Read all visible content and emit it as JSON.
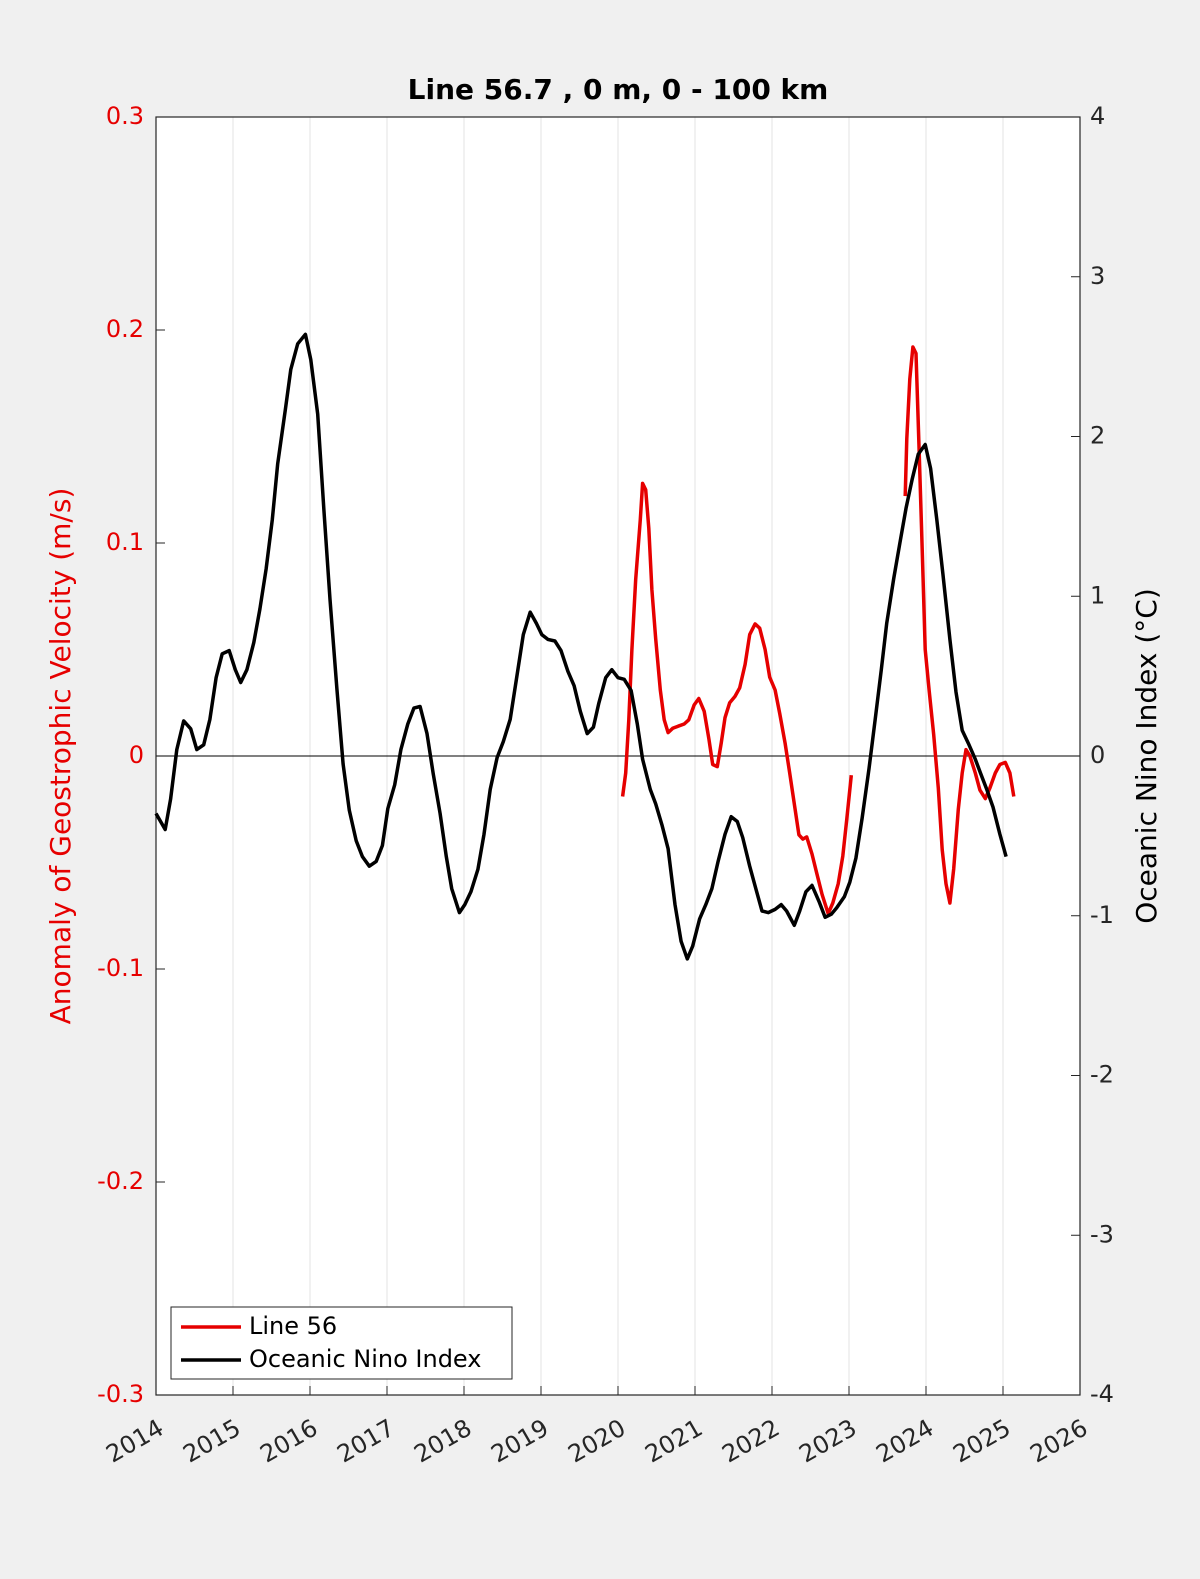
{
  "chart_data": {
    "type": "line",
    "title": "Line 56.7 , 0 m, 0 - 100 km",
    "ylabel": "Anomaly of Geostrophic Velocity (m/s)",
    "y2label": "Oceanic Nino Index (°C)",
    "ylabel_color": "#e60000",
    "xlim": [
      2014,
      2026
    ],
    "xticks": [
      2014,
      2015,
      2016,
      2017,
      2018,
      2019,
      2020,
      2021,
      2022,
      2023,
      2024,
      2025,
      2026
    ],
    "ylim": [
      -0.3,
      0.3
    ],
    "yticks": [
      -0.3,
      -0.2,
      -0.1,
      0,
      0.1,
      0.2,
      0.3
    ],
    "y2lim": [
      -4,
      4
    ],
    "y2ticks": [
      -4,
      -3,
      -2,
      -1,
      0,
      1,
      2,
      3,
      4
    ],
    "grid": "x",
    "hline": 0,
    "legend": "lower left",
    "series": [
      {
        "name": "Line 56",
        "color": "#e60000",
        "axis": "y",
        "x": [
          2020.06,
          2020.1,
          2020.14,
          2020.18,
          2020.23,
          2020.29,
          2020.32,
          2020.36,
          2020.4,
          2020.44,
          2020.49,
          2020.55,
          2020.6,
          2020.65,
          2020.71,
          2020.78,
          2020.86,
          2020.92,
          2020.99,
          2021.05,
          2021.12,
          2021.18,
          2021.23,
          2021.29,
          2021.34,
          2021.39,
          2021.45,
          2021.52,
          2021.58,
          2021.65,
          2021.71,
          2021.78,
          2021.84,
          2021.91,
          2021.97,
          2022.04,
          2022.1,
          2022.17,
          2022.23,
          2022.3,
          2022.35,
          2022.4,
          2022.45,
          2022.52,
          2022.58,
          2022.65,
          2022.73,
          2022.79,
          2022.86,
          2022.92,
          2022.97,
          2023.03,
          null,
          2023.73,
          2023.75,
          2023.79,
          2023.83,
          2023.87,
          2023.91,
          2023.95,
          2023.99,
          2024.04,
          2024.1,
          2024.16,
          2024.21,
          2024.26,
          2024.31,
          2024.36,
          2024.42,
          2024.47,
          2024.52,
          2024.57,
          2024.64,
          2024.7,
          2024.77,
          2024.83,
          2024.9,
          2024.96,
          2025.03,
          2025.09,
          2025.14
        ],
        "values": [
          -0.019,
          -0.008,
          0.017,
          0.05,
          0.083,
          0.111,
          0.128,
          0.125,
          0.107,
          0.078,
          0.055,
          0.031,
          0.017,
          0.011,
          0.013,
          0.014,
          0.015,
          0.017,
          0.024,
          0.027,
          0.021,
          0.008,
          -0.004,
          -0.005,
          0.006,
          0.018,
          0.025,
          0.028,
          0.032,
          0.043,
          0.057,
          0.062,
          0.06,
          0.05,
          0.037,
          0.031,
          0.02,
          0.006,
          -0.008,
          -0.025,
          -0.037,
          -0.039,
          -0.038,
          -0.046,
          -0.055,
          -0.065,
          -0.074,
          -0.069,
          -0.06,
          -0.047,
          -0.03,
          -0.009,
          null,
          0.122,
          0.149,
          0.177,
          0.192,
          0.189,
          0.144,
          0.097,
          0.05,
          0.031,
          0.01,
          -0.015,
          -0.044,
          -0.06,
          -0.069,
          -0.053,
          -0.025,
          -0.008,
          0.003,
          0,
          -0.008,
          -0.016,
          -0.02,
          -0.015,
          -0.008,
          -0.004,
          -0.003,
          -0.008,
          -0.019
        ]
      },
      {
        "name": "Oceanic Nino Index",
        "color": "#000000",
        "axis": "y2",
        "x": [
          2014.0,
          2014.12,
          2014.19,
          2014.27,
          2014.36,
          2014.45,
          2014.53,
          2014.62,
          2014.7,
          2014.78,
          2014.86,
          2014.95,
          2015.03,
          2015.1,
          2015.18,
          2015.27,
          2015.35,
          2015.43,
          2015.51,
          2015.58,
          2015.68,
          2015.75,
          2015.84,
          2015.94,
          2016.01,
          2016.1,
          2016.18,
          2016.26,
          2016.35,
          2016.43,
          2016.51,
          2016.6,
          2016.68,
          2016.77,
          2016.86,
          2016.94,
          2017.01,
          2017.1,
          2017.18,
          2017.27,
          2017.35,
          2017.43,
          2017.52,
          2017.6,
          2017.69,
          2017.77,
          2017.84,
          2017.94,
          2018.01,
          2018.09,
          2018.18,
          2018.26,
          2018.34,
          2018.43,
          2018.51,
          2018.6,
          2018.68,
          2018.77,
          2018.86,
          2018.94,
          2019.01,
          2019.09,
          2019.18,
          2019.26,
          2019.35,
          2019.43,
          2019.51,
          2019.6,
          2019.68,
          2019.75,
          2019.84,
          2019.92,
          2020.0,
          2020.08,
          2020.17,
          2020.25,
          2020.32,
          2020.42,
          2020.49,
          2020.57,
          2020.65,
          2020.74,
          2020.82,
          2020.9,
          2020.97,
          2021.06,
          2021.14,
          2021.22,
          2021.3,
          2021.39,
          2021.47,
          2021.55,
          2021.62,
          2021.71,
          2021.79,
          2021.87,
          2021.95,
          2022.04,
          2022.12,
          2022.19,
          2022.29,
          2022.36,
          2022.44,
          2022.52,
          2022.61,
          2022.69,
          2022.77,
          2022.84,
          2022.94,
          2023.01,
          2023.09,
          2023.17,
          2023.26,
          2023.34,
          2023.42,
          2023.49,
          2023.58,
          2023.66,
          2023.74,
          2023.82,
          2023.9,
          2023.99,
          2024.06,
          2024.14,
          2024.22,
          2024.31,
          2024.39,
          2024.47,
          2024.55,
          2024.64,
          2024.71,
          2024.79,
          2024.87,
          2024.96,
          2025.04
        ],
        "values": [
          -0.36,
          -0.46,
          -0.27,
          0.04,
          0.22,
          0.17,
          0.04,
          0.07,
          0.23,
          0.49,
          0.64,
          0.66,
          0.54,
          0.46,
          0.54,
          0.71,
          0.92,
          1.17,
          1.48,
          1.83,
          2.17,
          2.42,
          2.58,
          2.64,
          2.48,
          2.14,
          1.54,
          0.98,
          0.42,
          -0.05,
          -0.34,
          -0.53,
          -0.63,
          -0.69,
          -0.66,
          -0.56,
          -0.33,
          -0.18,
          0.04,
          0.2,
          0.3,
          0.31,
          0.14,
          -0.11,
          -0.36,
          -0.63,
          -0.83,
          -0.98,
          -0.93,
          -0.85,
          -0.71,
          -0.49,
          -0.21,
          -0.01,
          0.09,
          0.23,
          0.48,
          0.76,
          0.9,
          0.83,
          0.76,
          0.73,
          0.72,
          0.66,
          0.53,
          0.44,
          0.28,
          0.14,
          0.18,
          0.33,
          0.49,
          0.54,
          0.49,
          0.48,
          0.41,
          0.2,
          -0.02,
          -0.21,
          -0.3,
          -0.43,
          -0.58,
          -0.93,
          -1.16,
          -1.27,
          -1.19,
          -1.02,
          -0.93,
          -0.83,
          -0.66,
          -0.49,
          -0.38,
          -0.41,
          -0.51,
          -0.69,
          -0.83,
          -0.97,
          -0.98,
          -0.96,
          -0.93,
          -0.97,
          -1.06,
          -0.97,
          -0.85,
          -0.81,
          -0.91,
          -1.01,
          -0.99,
          -0.95,
          -0.88,
          -0.79,
          -0.64,
          -0.39,
          -0.08,
          0.23,
          0.54,
          0.83,
          1.11,
          1.33,
          1.55,
          1.73,
          1.89,
          1.95,
          1.8,
          1.48,
          1.14,
          0.73,
          0.4,
          0.16,
          0.08,
          -0.02,
          -0.11,
          -0.21,
          -0.32,
          -0.49,
          -0.63
        ]
      }
    ]
  }
}
